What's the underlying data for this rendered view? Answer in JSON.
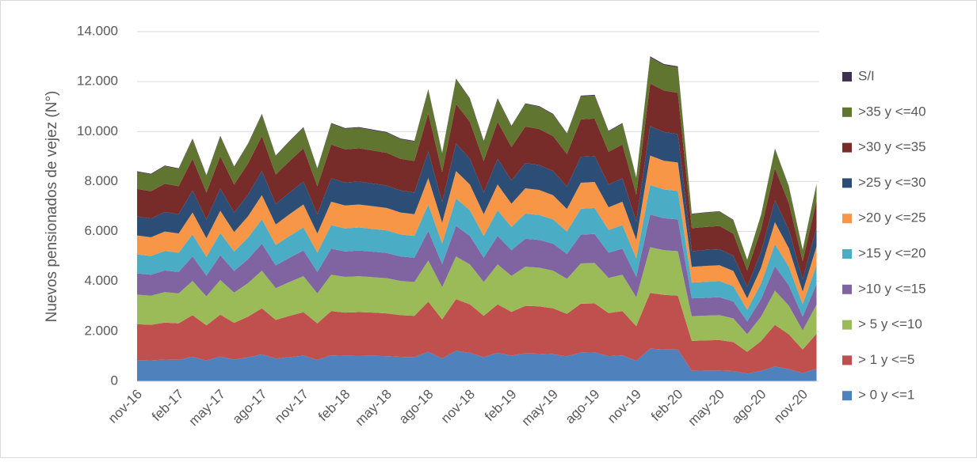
{
  "chart_data": {
    "type": "stacked_area",
    "y_label": "Nuevos pensionados de vejez (N°)",
    "categories": [
      "nov-16",
      null,
      null,
      "feb-17",
      null,
      null,
      "may-17",
      null,
      null,
      "ago-17",
      null,
      null,
      "nov-17",
      null,
      null,
      "feb-18",
      null,
      null,
      "may-18",
      null,
      null,
      "ago-18",
      null,
      null,
      "nov-18",
      null,
      null,
      "feb-19",
      null,
      null,
      "may-19",
      null,
      null,
      "ago-19",
      null,
      null,
      "nov-19",
      null,
      null,
      "feb-20",
      null,
      null,
      "may-20",
      null,
      null,
      "ago-20",
      null,
      null,
      "nov-20",
      null
    ],
    "ylim": [
      0,
      14000
    ],
    "yticks": [
      0,
      {
        "value": 2000,
        "label": "2.000"
      },
      {
        "value": 4000,
        "label": "4.000"
      },
      {
        "value": 6000,
        "label": "6.000"
      },
      {
        "value": 8000,
        "label": "8.000"
      },
      {
        "value": 10000,
        "label": "10.000"
      },
      {
        "value": 12000,
        "label": "12.000"
      },
      {
        "value": 14000,
        "label": "14.000"
      }
    ],
    "grid": true,
    "legend": "right",
    "series": [
      {
        "name": "> 0 y <=1",
        "color": "#4f81bd",
        "values": [
          850,
          840,
          870,
          860,
          980,
          830,
          990,
          870,
          960,
          1080,
          910,
          970,
          1030,
          860,
          1040,
          1020,
          1030,
          1020,
          1010,
          980,
          970,
          1180,
          920,
          1220,
          1140,
          970,
          1140,
          1030,
          1120,
          1110,
          1080,
          1000,
          1150,
          1160,
          1010,
          1040,
          820,
          1310,
          1280,
          1270,
          420,
          430,
          430,
          410,
          310,
          420,
          590,
          490,
          330,
          500
        ]
      },
      {
        "name": "> 1 y <=5",
        "color": "#c0504d",
        "values": [
          1440,
          1420,
          1480,
          1460,
          1670,
          1410,
          1680,
          1470,
          1630,
          1840,
          1550,
          1650,
          1740,
          1460,
          1770,
          1730,
          1740,
          1730,
          1710,
          1670,
          1650,
          2010,
          1560,
          2070,
          1940,
          1650,
          1940,
          1750,
          1900,
          1890,
          1840,
          1700,
          1960,
          1960,
          1720,
          1770,
          1390,
          2230,
          2180,
          2160,
          1200,
          1210,
          1220,
          1160,
          870,
          1190,
          1670,
          1390,
          940,
          1410
        ]
      },
      {
        "name": "> 5 y <=10",
        "color": "#9bbb59",
        "values": [
          1180,
          1170,
          1220,
          1200,
          1370,
          1160,
          1390,
          1210,
          1340,
          1510,
          1270,
          1360,
          1440,
          1200,
          1460,
          1430,
          1440,
          1420,
          1410,
          1370,
          1360,
          1650,
          1290,
          1710,
          1600,
          1360,
          1600,
          1440,
          1570,
          1550,
          1510,
          1400,
          1610,
          1620,
          1410,
          1460,
          1150,
          1830,
          1790,
          1780,
          990,
          990,
          1000,
          950,
          710,
          980,
          1370,
          1150,
          770,
          1160
        ]
      },
      {
        "name": ">10 y <=15",
        "color": "#8064a2",
        "values": [
          850,
          840,
          870,
          860,
          980,
          830,
          990,
          870,
          960,
          1080,
          910,
          970,
          1030,
          860,
          1040,
          1020,
          1030,
          1020,
          1010,
          980,
          970,
          1180,
          920,
          1220,
          1140,
          970,
          1140,
          1030,
          1120,
          1110,
          1080,
          1000,
          1150,
          1160,
          1010,
          1040,
          820,
          1310,
          1280,
          1270,
          710,
          710,
          720,
          680,
          510,
          700,
          980,
          820,
          550,
          830
        ]
      },
      {
        "name": ">15 y <=20",
        "color": "#4bacc6",
        "values": [
          760,
          750,
          780,
          770,
          880,
          750,
          890,
          780,
          860,
          970,
          820,
          870,
          920,
          770,
          940,
          920,
          920,
          910,
          900,
          880,
          870,
          1060,
          830,
          1100,
          1030,
          870,
          1030,
          930,
          1010,
          1000,
          970,
          900,
          1040,
          1040,
          910,
          940,
          740,
          1180,
          1150,
          1140,
          630,
          640,
          640,
          610,
          460,
          630,
          880,
          740,
          500,
          750
        ]
      },
      {
        "name": ">20 y <=25",
        "color": "#f79646",
        "values": [
          760,
          750,
          780,
          770,
          880,
          750,
          890,
          780,
          860,
          970,
          820,
          870,
          920,
          770,
          940,
          920,
          920,
          910,
          900,
          880,
          870,
          1060,
          830,
          1100,
          1030,
          870,
          1030,
          930,
          1010,
          1000,
          970,
          900,
          1040,
          1040,
          910,
          940,
          740,
          1180,
          1150,
          1140,
          630,
          640,
          640,
          610,
          460,
          630,
          880,
          740,
          500,
          750
        ]
      },
      {
        "name": ">25 y <=30",
        "color": "#2c4d75",
        "values": [
          760,
          750,
          780,
          770,
          880,
          750,
          890,
          780,
          860,
          970,
          820,
          870,
          920,
          770,
          940,
          920,
          920,
          910,
          900,
          880,
          870,
          1060,
          830,
          1100,
          1030,
          870,
          1030,
          930,
          1010,
          1000,
          970,
          900,
          1040,
          1040,
          910,
          940,
          740,
          1180,
          1150,
          1140,
          630,
          640,
          640,
          610,
          460,
          630,
          880,
          740,
          500,
          750
        ]
      },
      {
        "name": ">30 y <=35",
        "color": "#772c2a",
        "values": [
          1100,
          1090,
          1130,
          1120,
          1270,
          1080,
          1290,
          1120,
          1250,
          1400,
          1180,
          1260,
          1330,
          1120,
          1350,
          1330,
          1330,
          1320,
          1310,
          1270,
          1260,
          1530,
          1200,
          1590,
          1480,
          1260,
          1480,
          1340,
          1460,
          1440,
          1400,
          1300,
          1500,
          1500,
          1310,
          1350,
          1070,
          1700,
          1660,
          1650,
          920,
          920,
          930,
          880,
          660,
          910,
          1270,
          1070,
          720,
          1080
        ]
      },
      {
        "name": ">35 y <=40",
        "color": "#5f7530",
        "values": [
          680,
          670,
          700,
          690,
          780,
          660,
          790,
          690,
          770,
          860,
          730,
          780,
          820,
          690,
          830,
          820,
          820,
          810,
          800,
          780,
          780,
          940,
          740,
          980,
          910,
          780,
          910,
          820,
          900,
          890,
          860,
          800,
          920,
          920,
          810,
          830,
          660,
          1050,
          1020,
          1020,
          560,
          570,
          570,
          540,
          410,
          560,
          780,
          660,
          440,
          660
        ]
      },
      {
        "name": "S/I",
        "color": "#403151",
        "values": [
          30,
          30,
          30,
          30,
          30,
          30,
          30,
          30,
          30,
          30,
          30,
          30,
          30,
          30,
          30,
          30,
          30,
          30,
          30,
          30,
          30,
          30,
          30,
          30,
          30,
          30,
          30,
          30,
          30,
          30,
          30,
          30,
          30,
          30,
          30,
          30,
          30,
          40,
          40,
          40,
          20,
          20,
          20,
          20,
          20,
          20,
          20,
          20,
          20,
          20
        ]
      }
    ]
  }
}
